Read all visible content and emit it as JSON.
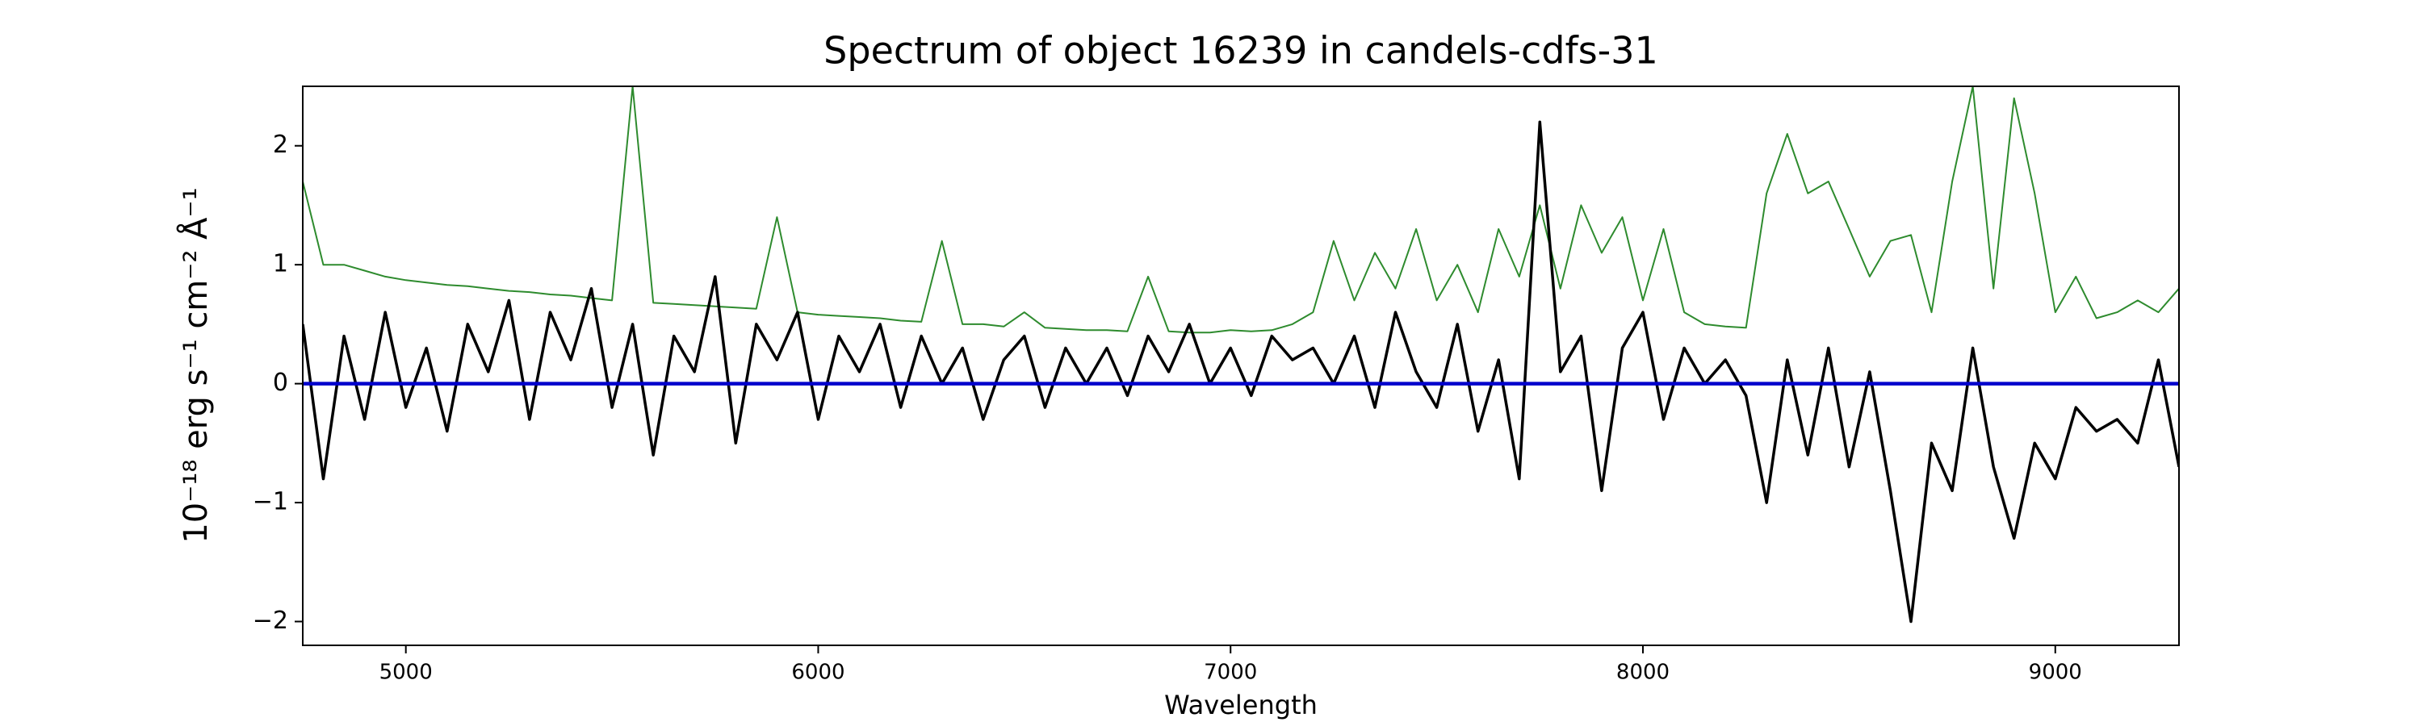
{
  "chart_data": {
    "type": "line",
    "title": "Spectrum of object 16239 in candels-cdfs-31",
    "x_label": "Wavelength",
    "y_label": "10⁻¹⁸ erg s⁻¹ cm⁻² Å⁻¹",
    "x": [
      4750,
      4800,
      4850,
      4900,
      4950,
      5000,
      5050,
      5100,
      5150,
      5200,
      5250,
      5300,
      5350,
      5400,
      5450,
      5500,
      5550,
      5600,
      5650,
      5700,
      5750,
      5800,
      5850,
      5900,
      5950,
      6000,
      6050,
      6100,
      6150,
      6200,
      6250,
      6300,
      6350,
      6400,
      6450,
      6500,
      6550,
      6600,
      6650,
      6700,
      6750,
      6800,
      6850,
      6900,
      6950,
      7000,
      7050,
      7100,
      7150,
      7200,
      7250,
      7300,
      7350,
      7400,
      7450,
      7500,
      7550,
      7600,
      7650,
      7700,
      7750,
      7800,
      7850,
      7900,
      7950,
      8000,
      8050,
      8100,
      8150,
      8200,
      8250,
      8300,
      8350,
      8400,
      8450,
      8500,
      8550,
      8600,
      8650,
      8700,
      8750,
      8800,
      8850,
      8900,
      8950,
      9000,
      9050,
      9100,
      9150,
      9200,
      9250,
      9300
    ],
    "series": [
      {
        "color": "#2e8b2e",
        "width": 2,
        "values": [
          1.7,
          1.0,
          1.0,
          0.95,
          0.9,
          0.87,
          0.85,
          0.83,
          0.82,
          0.8,
          0.78,
          0.77,
          0.75,
          0.74,
          0.72,
          0.7,
          2.5,
          0.68,
          0.67,
          0.66,
          0.65,
          0.64,
          0.63,
          1.4,
          0.6,
          0.58,
          0.57,
          0.56,
          0.55,
          0.53,
          0.52,
          1.2,
          0.5,
          0.5,
          0.48,
          0.6,
          0.47,
          0.46,
          0.45,
          0.45,
          0.44,
          0.9,
          0.44,
          0.43,
          0.43,
          0.45,
          0.44,
          0.45,
          0.5,
          0.6,
          1.2,
          0.7,
          1.1,
          0.8,
          1.3,
          0.7,
          1.0,
          0.6,
          1.3,
          0.9,
          1.5,
          0.8,
          1.5,
          1.1,
          1.4,
          0.7,
          1.3,
          0.6,
          0.5,
          0.48,
          0.47,
          1.6,
          2.1,
          1.6,
          1.7,
          1.3,
          0.9,
          1.2,
          1.25,
          0.6,
          1.7,
          2.5,
          0.8,
          2.4,
          1.6,
          0.6,
          0.9,
          0.55,
          0.6,
          0.7,
          0.6,
          0.8
        ]
      },
      {
        "color": "#000000",
        "width": 3.5,
        "values": [
          0.5,
          -0.8,
          0.4,
          -0.3,
          0.6,
          -0.2,
          0.3,
          -0.4,
          0.5,
          0.1,
          0.7,
          -0.3,
          0.6,
          0.2,
          0.8,
          -0.2,
          0.5,
          -0.6,
          0.4,
          0.1,
          0.9,
          -0.5,
          0.5,
          0.2,
          0.6,
          -0.3,
          0.4,
          0.1,
          0.5,
          -0.2,
          0.4,
          0.0,
          0.3,
          -0.3,
          0.2,
          0.4,
          -0.2,
          0.3,
          0.0,
          0.3,
          -0.1,
          0.4,
          0.1,
          0.5,
          0.0,
          0.3,
          -0.1,
          0.4,
          0.2,
          0.3,
          0.0,
          0.4,
          -0.2,
          0.6,
          0.1,
          -0.2,
          0.5,
          -0.4,
          0.2,
          -0.8,
          2.2,
          0.1,
          0.4,
          -0.9,
          0.3,
          0.6,
          -0.3,
          0.3,
          0.0,
          0.2,
          -0.1,
          -1.0,
          0.2,
          -0.6,
          0.3,
          -0.7,
          0.1,
          -0.9,
          -2.0,
          -0.5,
          -0.9,
          0.3,
          -0.7,
          -1.3,
          -0.5,
          -0.8,
          -0.2,
          -0.4,
          -0.3,
          -0.5,
          0.2,
          -0.7
        ]
      },
      {
        "color": "#0000cc",
        "width": 4.5,
        "x": [
          4750,
          9300
        ],
        "values": [
          0,
          0
        ]
      }
    ],
    "xlim": [
      4750,
      9300
    ],
    "ylim": [
      -2.2,
      2.5
    ],
    "xticks": [
      5000,
      6000,
      7000,
      8000,
      9000
    ],
    "yticks": [
      {
        "value": -2,
        "label": "−2"
      },
      {
        "value": -1,
        "label": "−1"
      },
      0,
      1,
      2
    ],
    "grid": false
  }
}
